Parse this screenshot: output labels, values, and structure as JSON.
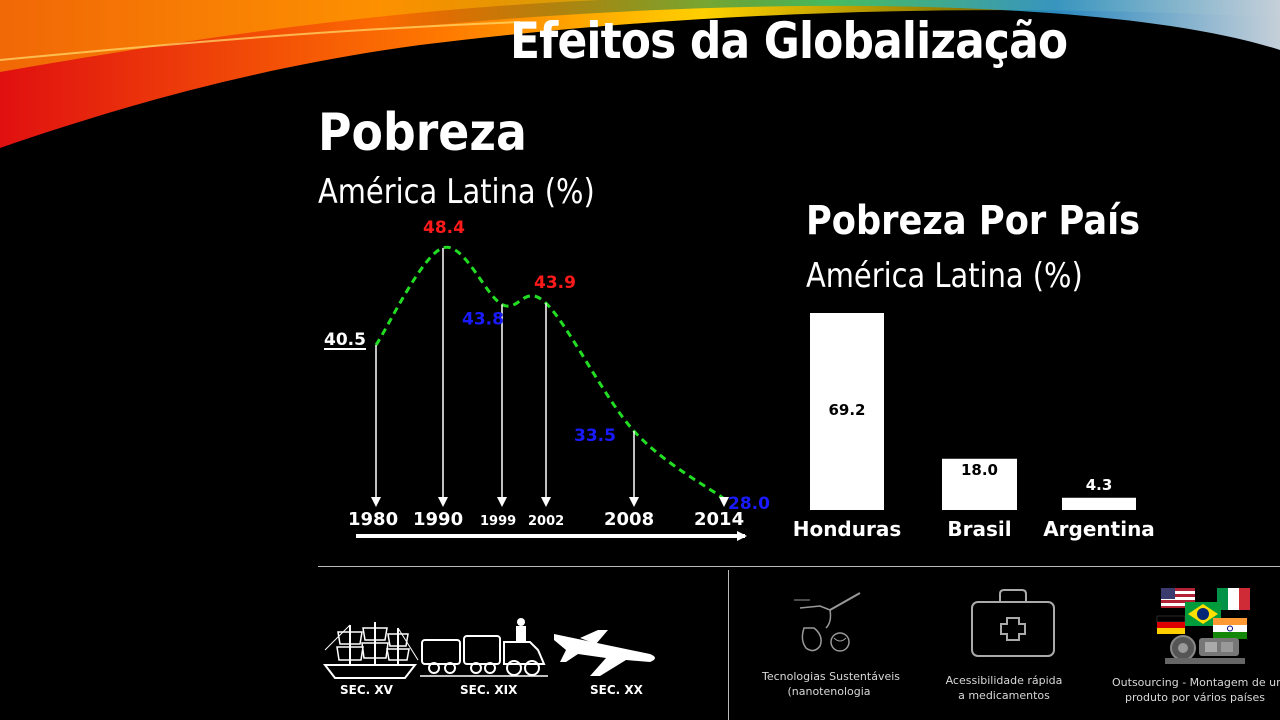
{
  "slide": {
    "title": "Efeitos da Globalização"
  },
  "chart_data": [
    {
      "type": "line",
      "title": "Pobreza",
      "subtitle": "América Latina (%)",
      "x": [
        "1980",
        "1990",
        "1999",
        "2002",
        "2008",
        "2014"
      ],
      "values": [
        40.5,
        48.4,
        43.8,
        43.9,
        33.5,
        28.0
      ],
      "value_labels": [
        "40.5",
        "48.4",
        "43.8",
        "43.9",
        "33.5",
        "28.0"
      ],
      "label_colors": [
        "#ffffff",
        "#ff1a1a",
        "#1a1aff",
        "#ff1a1a",
        "#1a1aff",
        "#1a1aff"
      ],
      "line_color": "#22dd22",
      "line_style": "dashed",
      "ylim": [
        20,
        50
      ]
    },
    {
      "type": "bar",
      "title": "Pobreza Por País",
      "subtitle": "América Latina (%)",
      "categories": [
        "Honduras",
        "Brasil",
        "Argentina"
      ],
      "values": [
        69.2,
        18.0,
        4.3
      ],
      "value_labels": [
        "69.2",
        "18.0",
        "4.3"
      ],
      "bar_color": "#ffffff",
      "ylim": [
        0,
        70
      ]
    }
  ],
  "eras": [
    {
      "label": "SEC. XV",
      "icon": "sailing-ship-icon"
    },
    {
      "label": "SEC. XIX",
      "icon": "steam-train-icon"
    },
    {
      "label": "SEC. XX",
      "icon": "airplane-icon"
    }
  ],
  "features": [
    {
      "label_line1": "Tecnologias Sustentáveis",
      "label_line2": "(nanotenologia",
      "icon": "nanotech-icon"
    },
    {
      "label_line1": "Acessibilidade rápida",
      "label_line2": "a medicamentos",
      "icon": "first-aid-kit-icon"
    },
    {
      "label_line1": "Outsourcing - Montagem de um",
      "label_line2": "produto por vários países",
      "icon": "flags-parts-icon"
    }
  ]
}
